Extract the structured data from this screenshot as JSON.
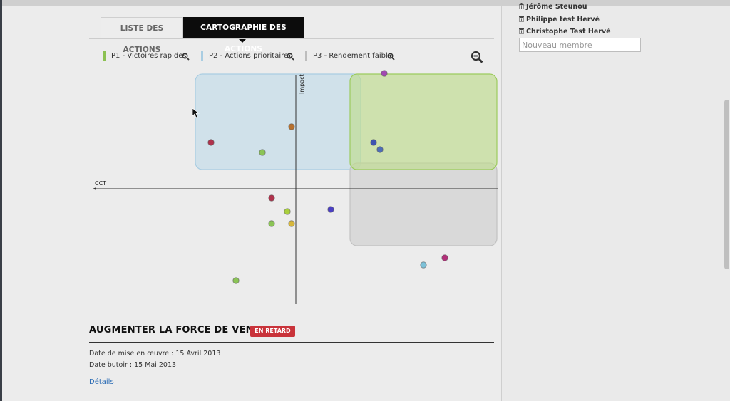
{
  "tabs": {
    "liste": "LISTE DES ACTIONS",
    "cartographie": "CARTOGRAPHIE DES ACTIONS"
  },
  "legend": [
    {
      "label": "P1 - Victoires rapides",
      "color": "#8cc152"
    },
    {
      "label": "P2 - Actions prioritaires",
      "color": "#a9cde2"
    },
    {
      "label": "P3 - Rendement faible",
      "color": "#bdbdbd"
    }
  ],
  "chart_data": {
    "type": "scatter",
    "xlabel": "CCT",
    "ylabel": "Impact",
    "points": [
      {
        "x": -119,
        "y": 65,
        "color": "#b0324c"
      },
      {
        "x": -6,
        "y": 87,
        "color": "#b7702e"
      },
      {
        "x": -47,
        "y": 51,
        "color": "#8bc456"
      },
      {
        "x": 124,
        "y": 162,
        "color": "#a248b2"
      },
      {
        "x": 109,
        "y": 65,
        "color": "#3d52b0"
      },
      {
        "x": 118,
        "y": 55,
        "color": "#4e6db8"
      },
      {
        "x": -34,
        "y": -13,
        "color": "#b0324c"
      },
      {
        "x": -12,
        "y": -32,
        "color": "#a9cf3c"
      },
      {
        "x": 49,
        "y": -29,
        "color": "#4b3fc4"
      },
      {
        "x": -34,
        "y": -49,
        "color": "#8bc456"
      },
      {
        "x": -6,
        "y": -49,
        "color": "#d7b73c"
      },
      {
        "x": 209,
        "y": -97,
        "color": "#b3307a"
      },
      {
        "x": 179,
        "y": -107,
        "color": "#7dc1d8"
      },
      {
        "x": -84,
        "y": -129,
        "color": "#8bc456"
      }
    ]
  },
  "action": {
    "title": "AUGMENTER LA FORCE DE VENTE",
    "status": "EN RETARD",
    "start_date": "Date de mise en œuvre : 15 Avril 2013",
    "due_date": "Date butoir : 15 Mai 2013",
    "details_link": "Détails"
  },
  "members": {
    "list": [
      "Jérôme Steunou",
      "Philippe test Hervé",
      "Christophe Test Hervé"
    ],
    "new_placeholder": "Nouveau membre"
  }
}
